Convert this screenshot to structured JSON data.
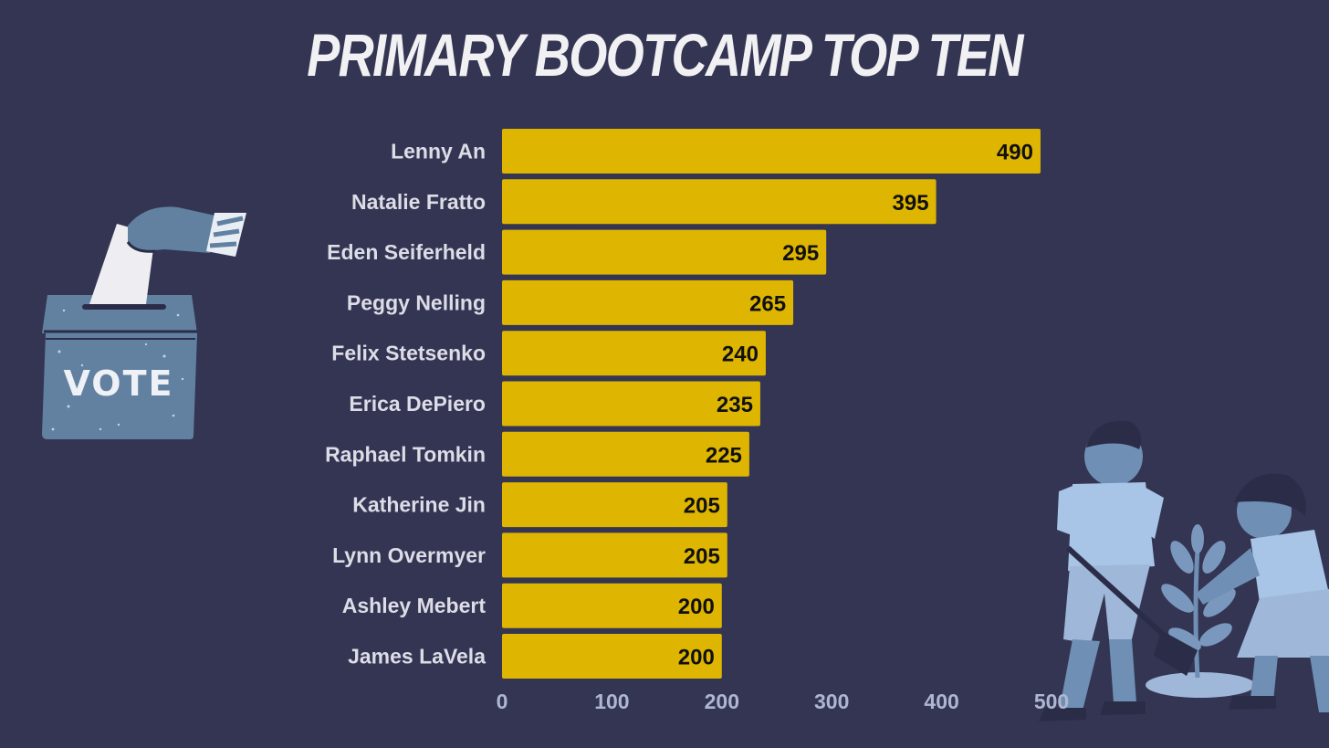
{
  "chart_data": {
    "type": "bar",
    "orientation": "horizontal",
    "title": "PRIMARY BOOTCAMP TOP TEN",
    "categories": [
      "Lenny An",
      "Natalie Fratto",
      "Eden Seiferheld",
      "Peggy Nelling",
      "Felix Stetsenko",
      "Erica DePiero",
      "Raphael Tomkin",
      "Katherine Jin",
      "Lynn Overmyer",
      "Ashley Mebert",
      "James LaVela"
    ],
    "values": [
      490,
      395,
      295,
      265,
      240,
      235,
      225,
      205,
      205,
      200,
      200
    ],
    "xlim": [
      0,
      500
    ],
    "xticks": [
      "0",
      "100",
      "200",
      "300",
      "400",
      "500"
    ],
    "grid": false,
    "legend": "none",
    "bar_color": "#deb500",
    "background_color": "#333553"
  },
  "illustrations": {
    "ballot_box_label": "VOTE",
    "ballot_box_icon": "ballot-box-icon",
    "children_icon": "children-planting-tree-icon"
  }
}
